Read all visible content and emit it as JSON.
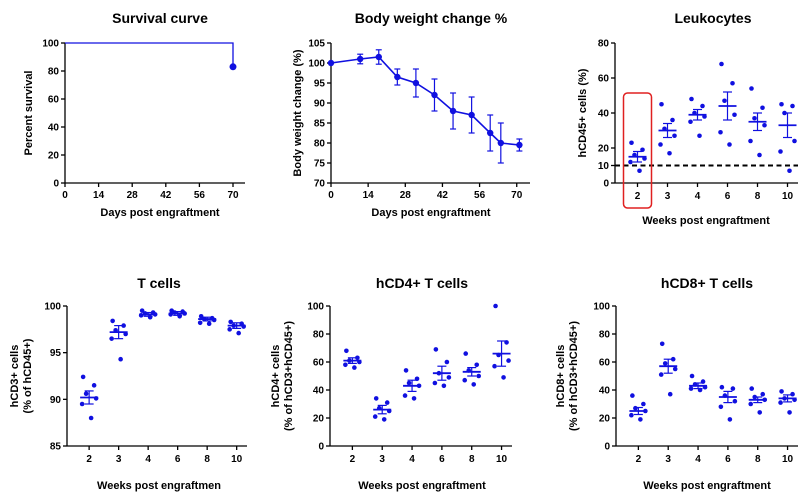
{
  "colors": {
    "series": "#1010e0",
    "highlight": "#e02020",
    "axis": "#000000"
  },
  "chart_data": [
    {
      "type": "line",
      "title": "Survival curve",
      "xlabel": "Days post engraftment",
      "ylabel": "Percent survival",
      "xlim": [
        0,
        75
      ],
      "ylim": [
        0,
        100
      ],
      "xticks": [
        0,
        14,
        28,
        42,
        56,
        70
      ],
      "yticks": [
        0,
        20,
        40,
        60,
        80,
        100
      ],
      "series": [
        {
          "step_x": [
            0,
            70,
            70
          ],
          "step_y": [
            100,
            100,
            83
          ],
          "marker_x": 70,
          "marker_y": 83
        }
      ]
    },
    {
      "type": "line",
      "title": "Body weight change %",
      "xlabel": "Days post engraftment",
      "ylabel": "Body weight change (%)",
      "xlim": [
        0,
        75
      ],
      "ylim": [
        70,
        105
      ],
      "xticks": [
        0,
        14,
        28,
        42,
        56,
        70
      ],
      "yticks": [
        70,
        75,
        80,
        85,
        90,
        95,
        100,
        105
      ],
      "series": [
        {
          "x": [
            0,
            11,
            18,
            25,
            32,
            39,
            46,
            53,
            60,
            64,
            71
          ],
          "y": [
            100,
            101,
            101.5,
            96.5,
            95,
            92,
            88,
            87,
            82.5,
            80,
            79.5
          ],
          "err": [
            0,
            1.2,
            1.8,
            2,
            3.5,
            4,
            4.5,
            4.5,
            4.5,
            5,
            1.5
          ]
        }
      ]
    },
    {
      "type": "scatter",
      "title": "Leukocytes",
      "xlabel": "Weeks post engraftment",
      "ylabel": "hCD45+ cells (%)",
      "categories": [
        "2",
        "3",
        "4",
        "6",
        "8",
        "10"
      ],
      "ylim": [
        0,
        80
      ],
      "yticks": [
        0,
        10,
        20,
        40,
        60,
        80
      ],
      "threshold": 10,
      "highlight_category": "2",
      "means": [
        15,
        30,
        39,
        44,
        35,
        33
      ],
      "sems": [
        3,
        4,
        3,
        8,
        5,
        7
      ],
      "points": [
        [
          23,
          19,
          16,
          14,
          12,
          7
        ],
        [
          45,
          36,
          31,
          27,
          22,
          17
        ],
        [
          48,
          44,
          40,
          38,
          35,
          27
        ],
        [
          68,
          57,
          47,
          39,
          29,
          22
        ],
        [
          54,
          43,
          37,
          33,
          24,
          16
        ],
        [
          45,
          44,
          40,
          24,
          18,
          7
        ]
      ]
    },
    {
      "type": "scatter",
      "title": "T cells",
      "xlabel": "Weeks post engraftmen",
      "ylabel": "hCD3+ cells",
      "ylabel2": "(% of hCD45+)",
      "categories": [
        "2",
        "3",
        "4",
        "6",
        "8",
        "10"
      ],
      "ylim": [
        85,
        100
      ],
      "yticks": [
        85,
        90,
        95,
        100
      ],
      "means": [
        90.2,
        97.2,
        99.1,
        99.2,
        98.6,
        97.9
      ],
      "sems": [
        0.7,
        0.7,
        0.2,
        0.2,
        0.2,
        0.3
      ],
      "points": [
        [
          92.4,
          91.5,
          90.6,
          90.1,
          89.5,
          88.0
        ],
        [
          98.4,
          97.9,
          97.4,
          97.0,
          96.5,
          94.3
        ],
        [
          99.5,
          99.3,
          99.2,
          99.1,
          99.0,
          98.8
        ],
        [
          99.5,
          99.4,
          99.3,
          99.2,
          99.1,
          98.9
        ],
        [
          98.9,
          98.7,
          98.6,
          98.5,
          98.2,
          98.1
        ],
        [
          98.3,
          98.1,
          97.9,
          97.8,
          97.5,
          97.1
        ]
      ]
    },
    {
      "type": "scatter",
      "title": "hCD4+ T cells",
      "xlabel": "Weeks post engraftment",
      "ylabel": "hCD4+ cells",
      "ylabel2": "(% of hCD3+hCD45+)",
      "categories": [
        "2",
        "3",
        "4",
        "6",
        "8",
        "10"
      ],
      "ylim": [
        0,
        100
      ],
      "yticks": [
        0,
        20,
        40,
        60,
        80,
        100
      ],
      "means": [
        61,
        26,
        43,
        52,
        53,
        66
      ],
      "sems": [
        2,
        3,
        4,
        5,
        3,
        9
      ],
      "points": [
        [
          68,
          63,
          61,
          60,
          58,
          56
        ],
        [
          34,
          31,
          27,
          25,
          21,
          19
        ],
        [
          54,
          48,
          45,
          43,
          36,
          34
        ],
        [
          69,
          60,
          52,
          49,
          45,
          43
        ],
        [
          66,
          58,
          54,
          50,
          47,
          44
        ],
        [
          100,
          74,
          65,
          61,
          57,
          49
        ]
      ]
    },
    {
      "type": "scatter",
      "title": "hCD8+ T cells",
      "xlabel": "Weeks post engraftment",
      "ylabel": "hCD8+ cells",
      "ylabel2": "(% of hCD3+hCD45+)",
      "categories": [
        "2",
        "3",
        "4",
        "6",
        "8",
        "10"
      ],
      "ylim": [
        0,
        100
      ],
      "yticks": [
        0,
        20,
        40,
        60,
        80,
        100
      ],
      "means": [
        25,
        57,
        43,
        35,
        33,
        34
      ],
      "sems": [
        2.5,
        5,
        2,
        4,
        2,
        2.5
      ],
      "points": [
        [
          36,
          30,
          27,
          25,
          22,
          19
        ],
        [
          73,
          62,
          59,
          55,
          51,
          37
        ],
        [
          50,
          46,
          44,
          42,
          41,
          40
        ],
        [
          42,
          41,
          36,
          32,
          28,
          19
        ],
        [
          41,
          37,
          35,
          33,
          30,
          24
        ],
        [
          39,
          37,
          34,
          33,
          31,
          24
        ]
      ]
    }
  ]
}
